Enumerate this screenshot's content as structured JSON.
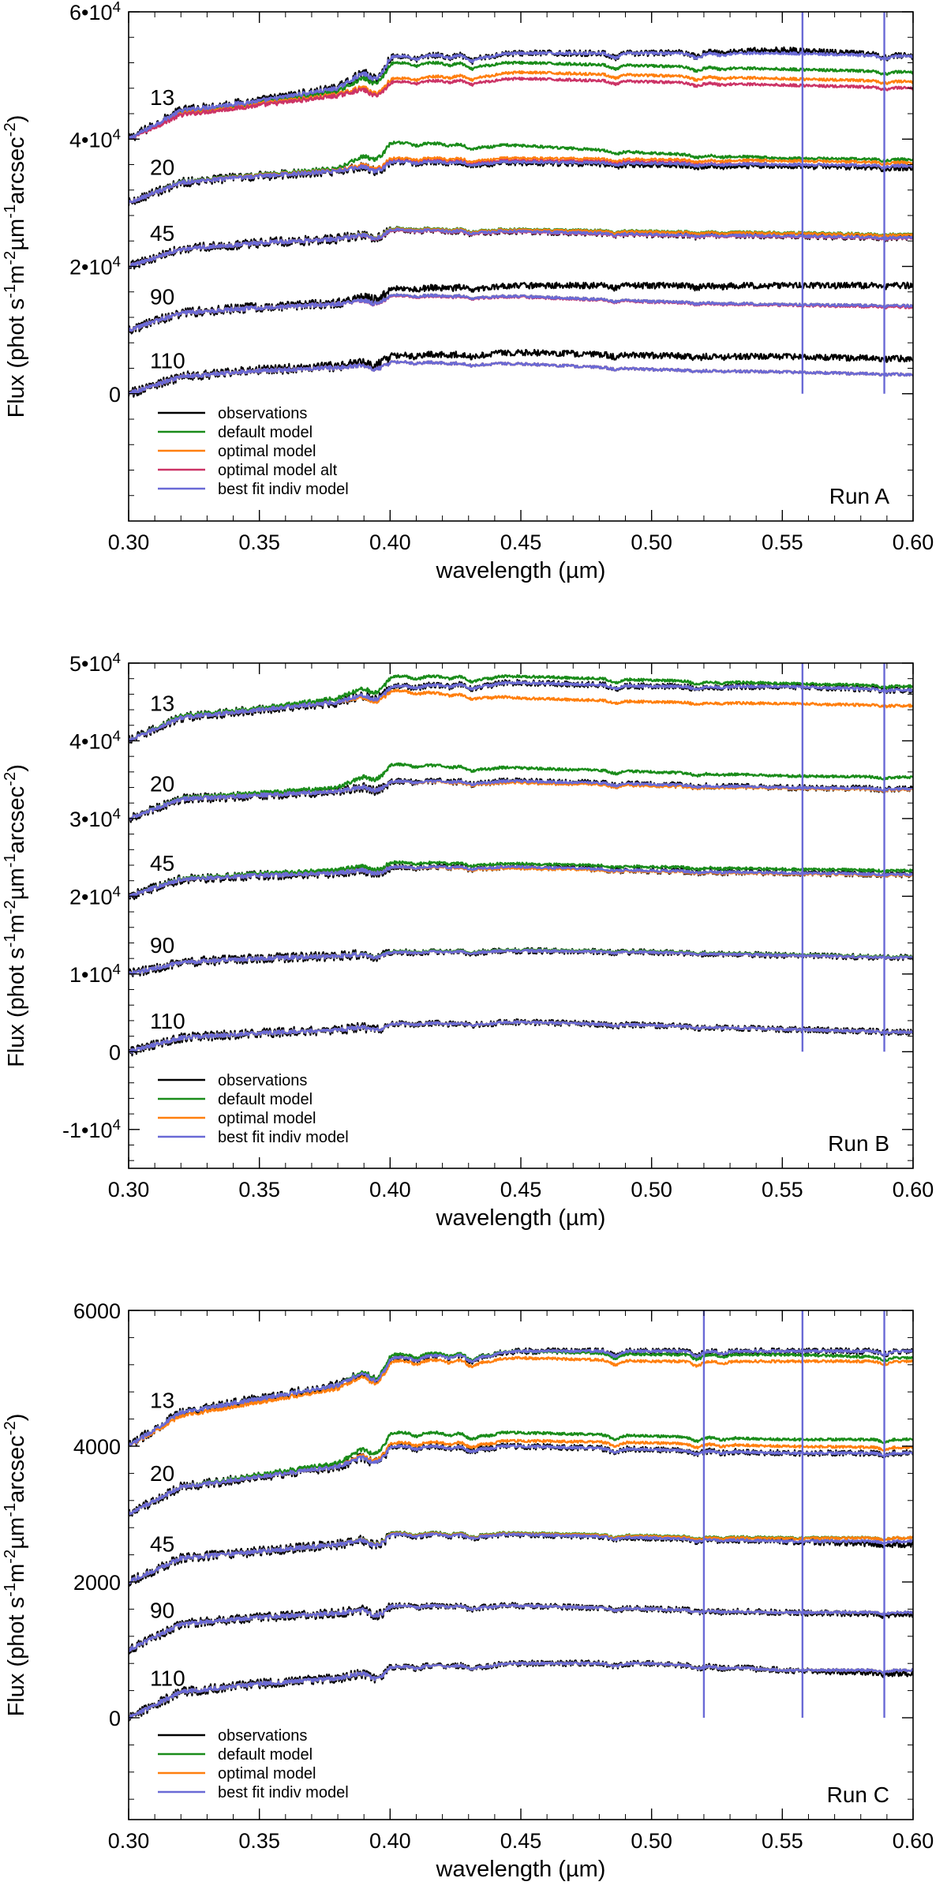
{
  "colors": {
    "observations": "#000000",
    "default": "#1a8c1a",
    "optimal": "#ff7f0e",
    "optimal_alt": "#cc3366",
    "best_fit": "#6a6ad6"
  },
  "chart_data": [
    {
      "type": "line",
      "panel": "Run A",
      "xlabel": "wavelength (µm)",
      "ylabel": "Flux (phot s⁻¹m⁻²µm⁻¹arcsec⁻²)",
      "xlim": [
        0.3,
        0.6
      ],
      "ylim": [
        -20000,
        60000
      ],
      "xticks": [
        0.3,
        0.35,
        0.4,
        0.45,
        0.5,
        0.55,
        0.6
      ],
      "xtick_labels": [
        "0.30",
        "0.35",
        "0.40",
        "0.45",
        "0.50",
        "0.55",
        "0.60"
      ],
      "yticks": [
        0,
        20000,
        40000,
        60000
      ],
      "ytick_labels": [
        "0",
        "2•10⁴",
        "4•10⁴",
        "6•10⁴"
      ],
      "legend": [
        "observations",
        "default model",
        "optimal model",
        "optimal model alt",
        "best fit indiv model"
      ],
      "legend_placement": "bottom-left",
      "curve_labels": [
        "13",
        "20",
        "45",
        "90",
        "110"
      ],
      "offsets": [
        40000,
        30000,
        20000,
        10000,
        0
      ],
      "continuum_x": [
        0.3,
        0.32,
        0.35,
        0.38,
        0.4,
        0.45,
        0.5,
        0.55,
        0.6
      ],
      "series": [
        {
          "name": "13",
          "obs": [
            40000,
            44500,
            46000,
            48000,
            53000,
            53500,
            53500,
            54000,
            53000
          ],
          "default": [
            40000,
            44300,
            45800,
            47500,
            52000,
            52000,
            51500,
            51000,
            50500
          ],
          "optimal": [
            40000,
            44000,
            45500,
            47000,
            49500,
            50500,
            50000,
            49500,
            49000
          ],
          "optimal_alt": [
            40000,
            43800,
            45300,
            46800,
            49000,
            49500,
            49000,
            48500,
            48000
          ],
          "best_fit": [
            40000,
            44500,
            46000,
            48000,
            53000,
            53500,
            53500,
            53500,
            53000
          ]
        },
        {
          "name": "20",
          "obs": [
            30000,
            33200,
            34200,
            35000,
            36500,
            36300,
            36000,
            35800,
            35500
          ],
          "default": [
            30000,
            33300,
            34400,
            35400,
            39500,
            39000,
            37800,
            37000,
            36800
          ],
          "optimal": [
            30000,
            33200,
            34300,
            35100,
            37000,
            37000,
            36800,
            36600,
            36300
          ],
          "optimal_alt": [
            30000,
            33200,
            34200,
            35000,
            36600,
            36600,
            36400,
            36000,
            35800
          ],
          "best_fit": [
            30000,
            33200,
            34200,
            35000,
            36500,
            36400,
            36200,
            36000,
            35800
          ]
        },
        {
          "name": "45",
          "obs": [
            20000,
            22700,
            23700,
            24300,
            25800,
            25500,
            25000,
            24800,
            24500
          ],
          "default": [
            20000,
            22700,
            23700,
            24300,
            26000,
            25800,
            25500,
            25300,
            25000
          ],
          "optimal": [
            20000,
            22700,
            23700,
            24300,
            25900,
            25700,
            25400,
            25200,
            24900
          ],
          "optimal_alt": [
            20000,
            22700,
            23700,
            24300,
            25700,
            25400,
            24900,
            24700,
            24400
          ],
          "best_fit": [
            20000,
            22700,
            23700,
            24300,
            25800,
            25500,
            25000,
            24800,
            24500
          ]
        },
        {
          "name": "90",
          "obs": [
            10000,
            12700,
            13600,
            14200,
            16500,
            17000,
            17000,
            17000,
            17000
          ],
          "default": [
            10000,
            12700,
            13500,
            14100,
            15500,
            15300,
            14500,
            14000,
            13800
          ],
          "optimal": [
            10000,
            12700,
            13500,
            14100,
            15500,
            15300,
            14500,
            14000,
            13800
          ],
          "optimal_alt": [
            10000,
            12700,
            13500,
            14100,
            15400,
            15200,
            14400,
            13900,
            13600
          ],
          "best_fit": [
            10000,
            12700,
            13500,
            14100,
            15500,
            15300,
            14500,
            14000,
            13800
          ]
        },
        {
          "name": "110",
          "obs": [
            0,
            2700,
            3700,
            4300,
            6000,
            6500,
            6000,
            5800,
            5500
          ],
          "default": [
            0,
            2700,
            3600,
            4100,
            5000,
            4700,
            3800,
            3400,
            3000
          ],
          "optimal": [
            0,
            2700,
            3600,
            4100,
            5000,
            4700,
            3800,
            3400,
            3000
          ],
          "optimal_alt": [
            0,
            2700,
            3600,
            4100,
            5000,
            4700,
            3800,
            3400,
            3000
          ],
          "best_fit": [
            0,
            2700,
            3600,
            4100,
            5000,
            4700,
            3800,
            3400,
            3000
          ]
        }
      ],
      "emission_lines": [
        0.5577,
        0.589
      ],
      "run_label": "Run A"
    },
    {
      "type": "line",
      "panel": "Run B",
      "xlabel": "wavelength (µm)",
      "ylabel": "Flux (phot s⁻¹m⁻²µm⁻¹arcsec⁻²)",
      "xlim": [
        0.3,
        0.6
      ],
      "ylim": [
        -15000,
        50000
      ],
      "xticks": [
        0.3,
        0.35,
        0.4,
        0.45,
        0.5,
        0.55,
        0.6
      ],
      "xtick_labels": [
        "0.30",
        "0.35",
        "0.40",
        "0.45",
        "0.50",
        "0.55",
        "0.60"
      ],
      "yticks": [
        -10000,
        0,
        10000,
        20000,
        30000,
        40000,
        50000
      ],
      "ytick_labels": [
        "-1•10⁴",
        "0",
        "1•10⁴",
        "2•10⁴",
        "3•10⁴",
        "4•10⁴",
        "5•10⁴"
      ],
      "legend": [
        "observations",
        "default model",
        "optimal model",
        "best fit indiv model"
      ],
      "legend_placement": "bottom-left",
      "curve_labels": [
        "13",
        "20",
        "45",
        "90",
        "110"
      ],
      "offsets": [
        40000,
        30000,
        20000,
        10000,
        0
      ],
      "continuum_x": [
        0.3,
        0.32,
        0.35,
        0.38,
        0.4,
        0.45,
        0.5,
        0.55,
        0.6
      ],
      "series": [
        {
          "name": "13",
          "obs": [
            40000,
            43000,
            44000,
            45000,
            47000,
            47500,
            47000,
            47000,
            46500
          ],
          "default": [
            40000,
            43200,
            44200,
            45500,
            48300,
            48300,
            47800,
            47400,
            47000
          ],
          "optimal": [
            40000,
            43000,
            44000,
            45000,
            46500,
            45500,
            45000,
            44800,
            44500
          ],
          "best_fit": [
            40000,
            43000,
            44000,
            45000,
            47000,
            47500,
            47000,
            47000,
            46500
          ]
        },
        {
          "name": "20",
          "obs": [
            30000,
            32500,
            33000,
            33500,
            34800,
            34800,
            34400,
            34000,
            33800
          ],
          "default": [
            30000,
            32600,
            33300,
            34000,
            37000,
            36500,
            36000,
            35500,
            35300
          ],
          "optimal": [
            30000,
            32500,
            33000,
            33500,
            34800,
            34600,
            34200,
            33900,
            33700
          ],
          "best_fit": [
            30000,
            32500,
            33000,
            33500,
            34800,
            34800,
            34400,
            34000,
            33800
          ]
        },
        {
          "name": "45",
          "obs": [
            20000,
            22200,
            22700,
            23000,
            23800,
            23800,
            23300,
            23000,
            22800
          ],
          "default": [
            20000,
            22300,
            22900,
            23400,
            24400,
            24200,
            23800,
            23500,
            23300
          ],
          "optimal": [
            20000,
            22200,
            22700,
            23000,
            23800,
            23600,
            23200,
            22900,
            22700
          ],
          "best_fit": [
            20000,
            22200,
            22700,
            23000,
            23800,
            23800,
            23300,
            23000,
            22800
          ]
        },
        {
          "name": "90",
          "obs": [
            10000,
            11500,
            12000,
            12300,
            12800,
            13000,
            12800,
            12400,
            12100
          ],
          "default": [
            10000,
            11500,
            12000,
            12300,
            12900,
            13100,
            12900,
            12500,
            12200
          ],
          "optimal": [
            10000,
            11500,
            12000,
            12300,
            12800,
            13000,
            12800,
            12400,
            12100
          ],
          "best_fit": [
            10000,
            11500,
            12000,
            12300,
            12800,
            13000,
            12800,
            12400,
            12100
          ]
        },
        {
          "name": "110",
          "obs": [
            0,
            1800,
            2400,
            2800,
            3600,
            3800,
            3400,
            2900,
            2500
          ],
          "default": [
            0,
            1800,
            2400,
            2800,
            3600,
            3800,
            3400,
            2900,
            2500
          ],
          "optimal": [
            0,
            1800,
            2400,
            2800,
            3600,
            3800,
            3400,
            2900,
            2500
          ],
          "best_fit": [
            0,
            1800,
            2400,
            2800,
            3600,
            3800,
            3400,
            2900,
            2500
          ]
        }
      ],
      "emission_lines": [
        0.5577,
        0.589
      ],
      "run_label": "Run B"
    },
    {
      "type": "line",
      "panel": "Run C",
      "xlabel": "wavelength (µm)",
      "ylabel": "Flux (phot s⁻¹m⁻²µm⁻¹arcsec⁻²)",
      "xlim": [
        0.3,
        0.6
      ],
      "ylim": [
        -1500,
        6000
      ],
      "xticks": [
        0.3,
        0.35,
        0.4,
        0.45,
        0.5,
        0.55,
        0.6
      ],
      "xtick_labels": [
        "0.30",
        "0.35",
        "0.40",
        "0.45",
        "0.50",
        "0.55",
        "0.60"
      ],
      "yticks": [
        0,
        2000,
        4000,
        6000
      ],
      "ytick_labels": [
        "0",
        "2000",
        "4000",
        "6000"
      ],
      "legend": [
        "observations",
        "default model",
        "optimal model",
        "best fit indiv model"
      ],
      "legend_placement": "bottom-left",
      "curve_labels": [
        "13",
        "20",
        "45",
        "90",
        "110"
      ],
      "offsets": [
        4000,
        3000,
        2000,
        1000,
        0
      ],
      "continuum_x": [
        0.3,
        0.32,
        0.35,
        0.38,
        0.4,
        0.45,
        0.5,
        0.55,
        0.6
      ],
      "series": [
        {
          "name": "13",
          "obs": [
            4000,
            4500,
            4700,
            4900,
            5300,
            5400,
            5400,
            5400,
            5400
          ],
          "default": [
            4000,
            4500,
            4700,
            4900,
            5350,
            5400,
            5350,
            5350,
            5300
          ],
          "optimal": [
            4000,
            4450,
            4650,
            4850,
            5250,
            5300,
            5250,
            5250,
            5250
          ],
          "best_fit": [
            4000,
            4500,
            4700,
            4900,
            5300,
            5400,
            5400,
            5400,
            5400
          ]
        },
        {
          "name": "20",
          "obs": [
            3000,
            3400,
            3550,
            3700,
            4000,
            4000,
            3950,
            3900,
            3900
          ],
          "default": [
            3000,
            3400,
            3580,
            3750,
            4200,
            4200,
            4150,
            4100,
            4100
          ],
          "optimal": [
            3000,
            3400,
            3550,
            3700,
            4050,
            4080,
            4050,
            4000,
            3980
          ],
          "best_fit": [
            3000,
            3400,
            3550,
            3700,
            4000,
            4000,
            3950,
            3900,
            3900
          ]
        },
        {
          "name": "45",
          "obs": [
            2000,
            2350,
            2450,
            2550,
            2700,
            2700,
            2650,
            2600,
            2550
          ],
          "default": [
            2000,
            2350,
            2450,
            2550,
            2720,
            2720,
            2680,
            2650,
            2650
          ],
          "optimal": [
            2000,
            2350,
            2450,
            2550,
            2710,
            2710,
            2670,
            2640,
            2650
          ],
          "best_fit": [
            2000,
            2350,
            2450,
            2550,
            2700,
            2700,
            2650,
            2600,
            2600
          ]
        },
        {
          "name": "90",
          "obs": [
            1000,
            1380,
            1480,
            1540,
            1650,
            1650,
            1600,
            1550,
            1520
          ],
          "default": [
            1000,
            1380,
            1480,
            1540,
            1650,
            1650,
            1600,
            1550,
            1550
          ],
          "optimal": [
            1000,
            1380,
            1480,
            1540,
            1650,
            1650,
            1600,
            1550,
            1550
          ],
          "best_fit": [
            1000,
            1380,
            1480,
            1540,
            1650,
            1650,
            1600,
            1550,
            1550
          ]
        },
        {
          "name": "110",
          "obs": [
            0,
            380,
            500,
            580,
            750,
            800,
            800,
            700,
            650
          ],
          "default": [
            0,
            380,
            500,
            580,
            750,
            800,
            800,
            700,
            700
          ],
          "optimal": [
            0,
            380,
            500,
            580,
            750,
            800,
            800,
            700,
            700
          ],
          "best_fit": [
            0,
            380,
            500,
            580,
            750,
            800,
            800,
            700,
            700
          ]
        }
      ],
      "emission_lines": [
        0.52,
        0.5577,
        0.589
      ],
      "run_label": "Run C"
    }
  ]
}
